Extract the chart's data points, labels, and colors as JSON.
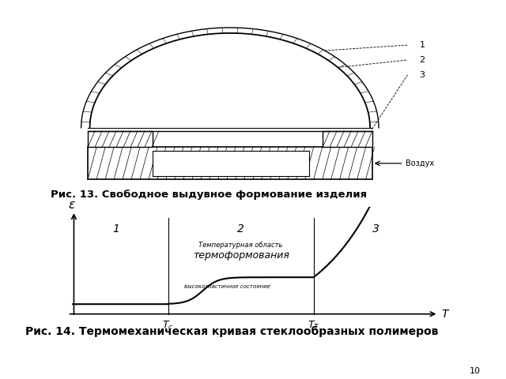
{
  "bg_color": "#ffffff",
  "fig13_caption": "Рис. 13. Свободное выдувное формование изделия",
  "fig14_caption": "Рис. 14. Термомеханическая кривая стеклообразных полимеров",
  "page_number": "10",
  "graph_ylabel": "ε",
  "graph_xlabel": "T",
  "zone1_label": "1",
  "zone2_label": "2",
  "zone3_label": "3",
  "thermoform_title": "Температурная область",
  "thermoform_subtitle": "термоформования",
  "elastic_label": "высокоэластичное состояние",
  "air_label": "Воздух",
  "lbl1": "1",
  "lbl2": "2",
  "lbl3": "3"
}
